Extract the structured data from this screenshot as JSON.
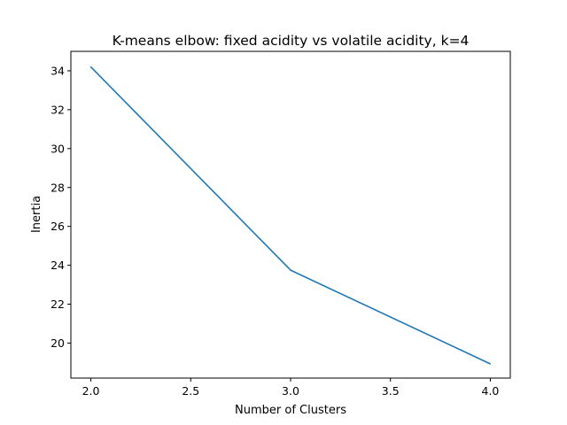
{
  "chart_data": {
    "type": "line",
    "title": "K-means elbow: fixed acidity vs volatile acidity, k=4",
    "xlabel": "Number of Clusters",
    "ylabel": "Inertia",
    "xlim": [
      1.9,
      4.1
    ],
    "ylim": [
      18.2,
      35.0
    ],
    "xticks": [
      2.0,
      2.5,
      3.0,
      3.5,
      4.0
    ],
    "xtick_labels": [
      "2.0",
      "2.5",
      "3.0",
      "3.5",
      "4.0"
    ],
    "yticks": [
      20,
      22,
      24,
      26,
      28,
      30,
      32,
      34
    ],
    "ytick_labels": [
      "20",
      "22",
      "24",
      "26",
      "28",
      "30",
      "32",
      "34"
    ],
    "grid": false,
    "series": [
      {
        "color": "#1f77b4",
        "x": [
          2,
          3,
          4
        ],
        "y": [
          34.2,
          23.75,
          18.93
        ]
      }
    ]
  }
}
